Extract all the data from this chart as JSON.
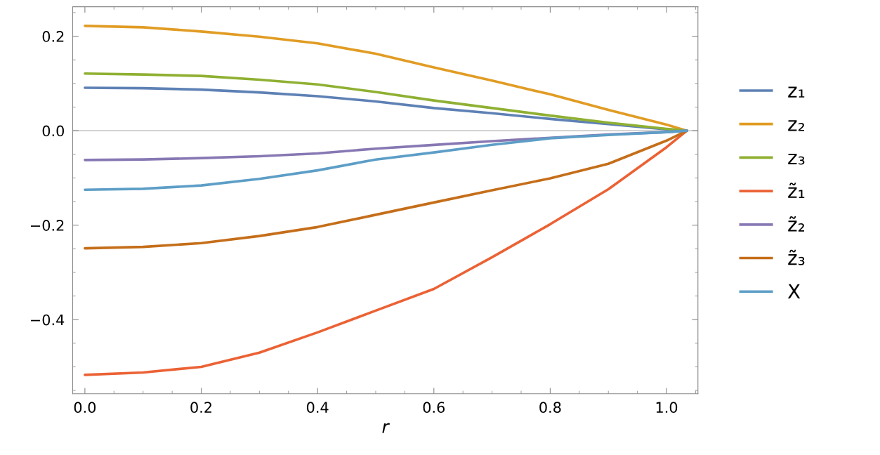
{
  "chart_data": {
    "type": "line",
    "xlabel": "r",
    "xlim": [
      -0.021,
      1.054
    ],
    "ylim": [
      -0.557,
      0.2625
    ],
    "xticks": [
      {
        "value": 0,
        "label": "0.0"
      },
      0.2,
      0.4,
      0.6,
      0.8,
      {
        "value": 1,
        "label": "1.0"
      }
    ],
    "yticks": [
      {
        "value": -0.4,
        "label": "−0.4"
      },
      {
        "value": -0.2,
        "label": "−0.2"
      },
      {
        "value": 0,
        "label": "0.0"
      },
      0.2
    ],
    "x": [
      0,
      0.1,
      0.2,
      0.3,
      0.4,
      0.5,
      0.6,
      0.7,
      0.8,
      0.9,
      1.0,
      1.035
    ],
    "series": [
      {
        "name": "z₁",
        "color": "#5e81b5",
        "values": [
          0.091,
          0.09,
          0.087,
          0.081,
          0.073,
          0.062,
          0.048,
          0.037,
          0.025,
          0.014,
          0.003,
          0
        ]
      },
      {
        "name": "z₂",
        "color": "#e19c24",
        "values": [
          0.222,
          0.219,
          0.21,
          0.199,
          0.185,
          0.163,
          0.134,
          0.106,
          0.077,
          0.044,
          0.013,
          0
        ]
      },
      {
        "name": "z₃",
        "color": "#8fb032",
        "values": [
          0.121,
          0.119,
          0.116,
          0.108,
          0.098,
          0.082,
          0.064,
          0.048,
          0.032,
          0.017,
          0.004,
          0
        ]
      },
      {
        "name": "z̃₁",
        "color": "#eb6235",
        "values": [
          -0.517,
          -0.512,
          -0.5,
          -0.47,
          -0.427,
          -0.381,
          -0.335,
          -0.268,
          -0.198,
          -0.124,
          -0.035,
          0
        ]
      },
      {
        "name": "z̃₂",
        "color": "#8778b3",
        "values": [
          -0.062,
          -0.061,
          -0.058,
          -0.054,
          -0.048,
          -0.038,
          -0.03,
          -0.022,
          -0.015,
          -0.008,
          -0.003,
          0
        ]
      },
      {
        "name": "z̃₃",
        "color": "#c56e1a",
        "values": [
          -0.249,
          -0.246,
          -0.238,
          -0.223,
          -0.204,
          -0.178,
          -0.152,
          -0.126,
          -0.101,
          -0.07,
          -0.021,
          0
        ]
      },
      {
        "name": "X",
        "color": "#5d9ec7",
        "values": [
          -0.125,
          -0.123,
          -0.116,
          -0.102,
          -0.084,
          -0.061,
          -0.046,
          -0.03,
          -0.016,
          -0.009,
          -0.003,
          0
        ]
      }
    ],
    "ref_lines": [
      {
        "axis": "y",
        "value": 0,
        "color": "#b3b3b3"
      }
    ],
    "legend": "right",
    "grid": false,
    "marker": "none",
    "line_style": "solid"
  }
}
